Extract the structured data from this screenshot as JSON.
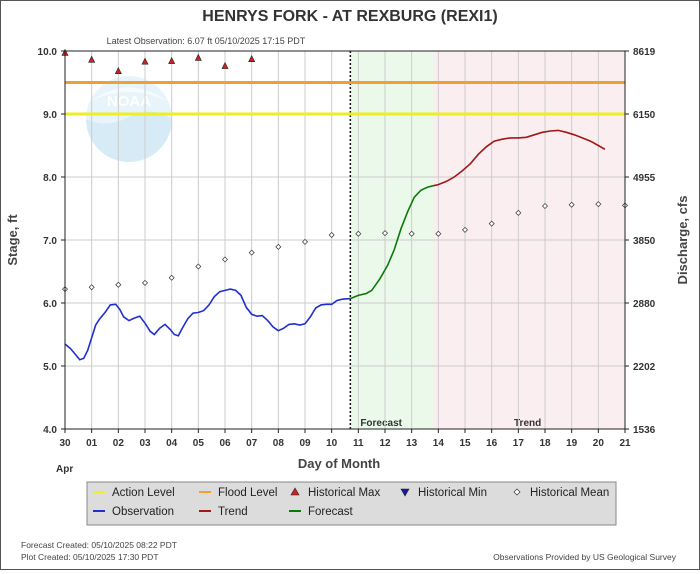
{
  "header": {
    "title": "HENRYS FORK - AT REXBURG  (REXI1)",
    "latest_observation": "Latest Observation: 6.07 ft 05/10/2025 17:15 PDT"
  },
  "footer": {
    "forecast_created": "Forecast Created: 05/10/2025 08:22 PDT",
    "plot_created": "Plot Created: 05/10/2025 17:30 PDT",
    "provider": "Observations Provided by US Geological Survey"
  },
  "logo_text": "NOAA",
  "colors": {
    "action": "#eeee22",
    "flood": "#f0a030",
    "observation": "#1f2fd0",
    "trend": "#a01818",
    "forecast": "#0a7a0a",
    "forecast_zone": "#eaf9ea",
    "trend_zone": "#fbeef0",
    "hist_max": "#d02020",
    "hist_min": "#1a1aa0",
    "hist_mean": "#ffffff"
  },
  "chart_data": {
    "type": "line",
    "xlabel": "Day of Month",
    "ylabel": "Stage, ft",
    "y2label": "Discharge, cfs",
    "month_label": "Apr",
    "x_ticks": [
      "30",
      "01",
      "02",
      "03",
      "04",
      "05",
      "06",
      "07",
      "08",
      "09",
      "10",
      "11",
      "12",
      "13",
      "14",
      "15",
      "16",
      "17",
      "18",
      "19",
      "20",
      "21"
    ],
    "x_range": [
      0,
      21
    ],
    "y_range": [
      4.0,
      10.0
    ],
    "y_ticks": [
      4.0,
      5.0,
      6.0,
      7.0,
      8.0,
      9.0,
      10.0
    ],
    "y2_ticks": [
      {
        "stage": 4.0,
        "label": "1536"
      },
      {
        "stage": 5.0,
        "label": "2202"
      },
      {
        "stage": 6.0,
        "label": "2880"
      },
      {
        "stage": 7.0,
        "label": "3850"
      },
      {
        "stage": 8.0,
        "label": "4955"
      },
      {
        "stage": 9.0,
        "label": "6150"
      },
      {
        "stage": 10.0,
        "label": "8619"
      }
    ],
    "grid": true,
    "action_level": 9.0,
    "flood_level": 9.5,
    "latest_obs_day": 10.7,
    "forecast_zone": [
      10.7,
      13.8
    ],
    "zone_labels": {
      "forecast": "Forecast",
      "trend": "Trend"
    },
    "observation": [
      [
        0.0,
        5.35
      ],
      [
        0.2,
        5.28
      ],
      [
        0.4,
        5.18
      ],
      [
        0.55,
        5.1
      ],
      [
        0.7,
        5.12
      ],
      [
        0.85,
        5.25
      ],
      [
        1.0,
        5.45
      ],
      [
        1.15,
        5.65
      ],
      [
        1.3,
        5.75
      ],
      [
        1.5,
        5.85
      ],
      [
        1.7,
        5.97
      ],
      [
        1.9,
        5.98
      ],
      [
        2.05,
        5.9
      ],
      [
        2.2,
        5.78
      ],
      [
        2.4,
        5.72
      ],
      [
        2.6,
        5.76
      ],
      [
        2.8,
        5.79
      ],
      [
        3.0,
        5.68
      ],
      [
        3.2,
        5.55
      ],
      [
        3.35,
        5.5
      ],
      [
        3.55,
        5.6
      ],
      [
        3.75,
        5.66
      ],
      [
        3.95,
        5.58
      ],
      [
        4.1,
        5.5
      ],
      [
        4.25,
        5.48
      ],
      [
        4.4,
        5.6
      ],
      [
        4.6,
        5.75
      ],
      [
        4.8,
        5.84
      ],
      [
        5.0,
        5.85
      ],
      [
        5.2,
        5.88
      ],
      [
        5.4,
        5.97
      ],
      [
        5.6,
        6.1
      ],
      [
        5.8,
        6.18
      ],
      [
        6.0,
        6.2
      ],
      [
        6.2,
        6.22
      ],
      [
        6.4,
        6.2
      ],
      [
        6.6,
        6.12
      ],
      [
        6.8,
        5.93
      ],
      [
        7.0,
        5.82
      ],
      [
        7.2,
        5.79
      ],
      [
        7.4,
        5.8
      ],
      [
        7.6,
        5.72
      ],
      [
        7.8,
        5.62
      ],
      [
        8.0,
        5.56
      ],
      [
        8.2,
        5.6
      ],
      [
        8.4,
        5.66
      ],
      [
        8.6,
        5.67
      ],
      [
        8.8,
        5.65
      ],
      [
        9.0,
        5.67
      ],
      [
        9.2,
        5.78
      ],
      [
        9.4,
        5.92
      ],
      [
        9.6,
        5.97
      ],
      [
        9.8,
        5.98
      ],
      [
        10.0,
        5.98
      ],
      [
        10.2,
        6.04
      ],
      [
        10.4,
        6.06
      ],
      [
        10.7,
        6.07
      ]
    ],
    "forecast": [
      [
        10.7,
        6.07
      ],
      [
        11.0,
        6.12
      ],
      [
        11.3,
        6.15
      ],
      [
        11.5,
        6.2
      ],
      [
        11.8,
        6.38
      ],
      [
        12.1,
        6.6
      ],
      [
        12.35,
        6.85
      ],
      [
        12.6,
        7.18
      ],
      [
        12.85,
        7.45
      ],
      [
        13.1,
        7.68
      ],
      [
        13.35,
        7.79
      ],
      [
        13.6,
        7.84
      ],
      [
        13.8,
        7.86
      ]
    ],
    "trend": [
      [
        13.8,
        7.86
      ],
      [
        14.0,
        7.88
      ],
      [
        14.3,
        7.93
      ],
      [
        14.6,
        8.0
      ],
      [
        14.9,
        8.1
      ],
      [
        15.2,
        8.21
      ],
      [
        15.5,
        8.36
      ],
      [
        15.8,
        8.48
      ],
      [
        16.1,
        8.57
      ],
      [
        16.4,
        8.6
      ],
      [
        16.7,
        8.62
      ],
      [
        17.0,
        8.62
      ],
      [
        17.3,
        8.63
      ],
      [
        17.6,
        8.67
      ],
      [
        17.9,
        8.71
      ],
      [
        18.2,
        8.73
      ],
      [
        18.5,
        8.74
      ],
      [
        18.8,
        8.71
      ],
      [
        19.1,
        8.67
      ],
      [
        19.4,
        8.62
      ],
      [
        19.7,
        8.57
      ],
      [
        20.0,
        8.5
      ],
      [
        20.25,
        8.44
      ]
    ],
    "historical_max": [
      [
        0,
        9.97
      ],
      [
        1,
        9.86
      ],
      [
        2,
        9.68
      ],
      [
        3,
        9.83
      ],
      [
        4,
        9.84
      ],
      [
        5,
        9.89
      ],
      [
        6,
        9.76
      ],
      [
        7,
        9.87
      ]
    ],
    "historical_min": [],
    "historical_mean": [
      [
        0,
        6.22
      ],
      [
        1,
        6.25
      ],
      [
        2,
        6.29
      ],
      [
        3,
        6.32
      ],
      [
        4,
        6.4
      ],
      [
        5,
        6.58
      ],
      [
        6,
        6.69
      ],
      [
        7,
        6.8
      ],
      [
        8,
        6.89
      ],
      [
        9,
        6.97
      ],
      [
        10,
        7.08
      ],
      [
        11,
        7.1
      ],
      [
        12,
        7.11
      ],
      [
        13,
        7.1
      ],
      [
        14,
        7.1
      ],
      [
        15,
        7.16
      ],
      [
        16,
        7.26
      ],
      [
        17,
        7.43
      ],
      [
        18,
        7.54
      ],
      [
        19,
        7.56
      ],
      [
        20,
        7.57
      ],
      [
        21,
        7.55
      ]
    ],
    "legend": [
      {
        "label": "Action Level",
        "key": "action",
        "kind": "line"
      },
      {
        "label": "Flood Level",
        "key": "flood",
        "kind": "line"
      },
      {
        "label": "Historical Max",
        "key": "hist_max",
        "kind": "tri-up"
      },
      {
        "label": "Historical Min",
        "key": "hist_min",
        "kind": "tri-down"
      },
      {
        "label": "Historical Mean",
        "key": "hist_mean",
        "kind": "diamond"
      },
      {
        "label": "Observation",
        "key": "observation",
        "kind": "line"
      },
      {
        "label": "Trend",
        "key": "trend",
        "kind": "line"
      },
      {
        "label": "Forecast",
        "key": "forecast",
        "kind": "line"
      }
    ]
  }
}
